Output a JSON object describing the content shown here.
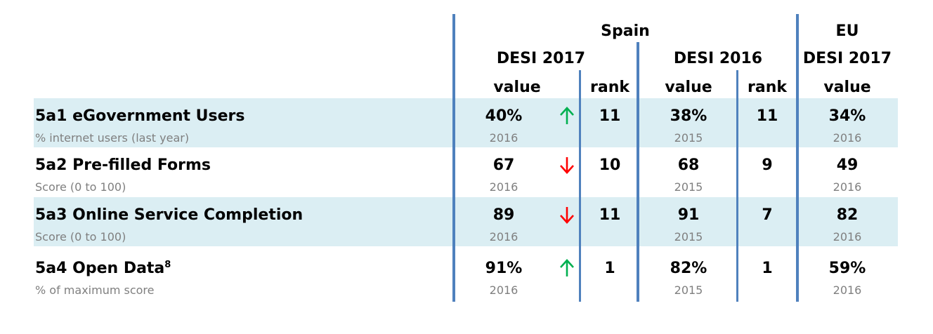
{
  "headers": {
    "spain": "Spain",
    "eu": "EU",
    "desi_2017_spain": "DESI 2017",
    "desi_2016_spain": "DESI 2016",
    "desi_2017_eu": "DESI 2017",
    "value_1": "value",
    "rank_1": "rank",
    "value_2": "value",
    "rank_2": "rank",
    "value_3": "value"
  },
  "colors": {
    "band": "#dbeef3",
    "divider": "#4f81bd",
    "up_arrow": "#00b050",
    "down_arrow": "#ff0000",
    "subtext": "#7f7f7f"
  },
  "rows": [
    {
      "name": "5a1 eGovernment Users",
      "footnote": "",
      "sub": "% internet users (last year)",
      "spain_2017_value": "40%",
      "spain_2017_year": "2016",
      "trend": "up",
      "spain_2017_rank": "11",
      "spain_2016_value": "38%",
      "spain_2016_year": "2015",
      "spain_2016_rank": "11",
      "eu_2017_value": "34%",
      "eu_2017_year": "2016"
    },
    {
      "name": "5a2 Pre-filled Forms",
      "footnote": "",
      "sub": "Score (0 to 100)",
      "spain_2017_value": "67",
      "spain_2017_year": "2016",
      "trend": "down",
      "spain_2017_rank": "10",
      "spain_2016_value": "68",
      "spain_2016_year": "2015",
      "spain_2016_rank": "9",
      "eu_2017_value": "49",
      "eu_2017_year": "2016"
    },
    {
      "name": "5a3 Online Service Completion",
      "footnote": "",
      "sub": "Score (0 to 100)",
      "spain_2017_value": "89",
      "spain_2017_year": "2016",
      "trend": "down",
      "spain_2017_rank": "11",
      "spain_2016_value": "91",
      "spain_2016_year": "2015",
      "spain_2016_rank": "7",
      "eu_2017_value": "82",
      "eu_2017_year": "2016"
    },
    {
      "name": "5a4 Open Data",
      "footnote": "8",
      "sub": "% of maximum score",
      "spain_2017_value": "91%",
      "spain_2017_year": "2016",
      "trend": "up",
      "spain_2017_rank": "1",
      "spain_2016_value": "82%",
      "spain_2016_year": "2015",
      "spain_2016_rank": "1",
      "eu_2017_value": "59%",
      "eu_2017_year": "2016"
    }
  ]
}
